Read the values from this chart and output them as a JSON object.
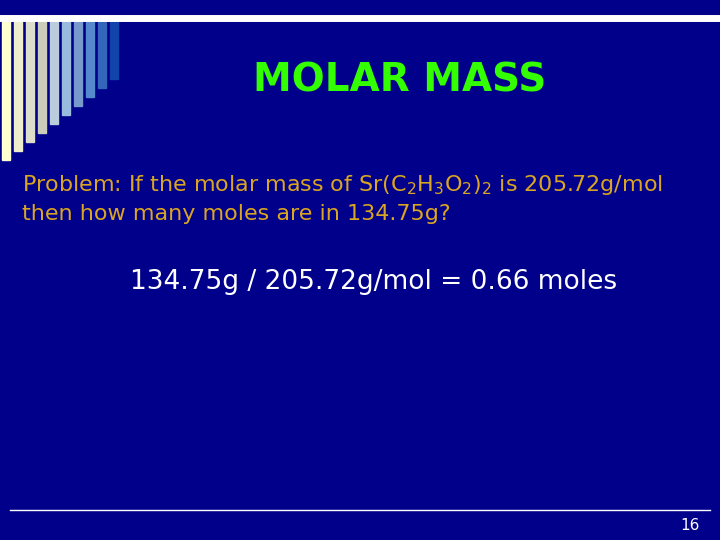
{
  "title": "MOLAR MASS",
  "title_color": "#33ff00",
  "title_fontsize": 28,
  "background_color": "#00008B",
  "problem_line1": "Problem: If the molar mass of Sr(C$_2$H$_3$O$_2$)$_2$ is 205.72g/mol",
  "problem_line2": "then how many moles are in 134.75g?",
  "problem_color": "#DAA520",
  "problem_fontsize": 16,
  "answer_text": "134.75g / 205.72g/mol = 0.66 moles",
  "answer_color": "#FFFFFF",
  "answer_fontsize": 19,
  "page_number": "16",
  "page_color": "#FFFFFF",
  "line_color": "#FFFFFF",
  "top_line_color": "#FFFFFF",
  "stripe_colors": [
    "#FFFFD0",
    "#E8E8C0",
    "#D0D0B0",
    "#B8C8D8",
    "#A0B8D0",
    "#88A8C8",
    "#6090C0",
    "#3070B8",
    "#1858B0",
    "#0040A8"
  ],
  "num_stripes": 10
}
